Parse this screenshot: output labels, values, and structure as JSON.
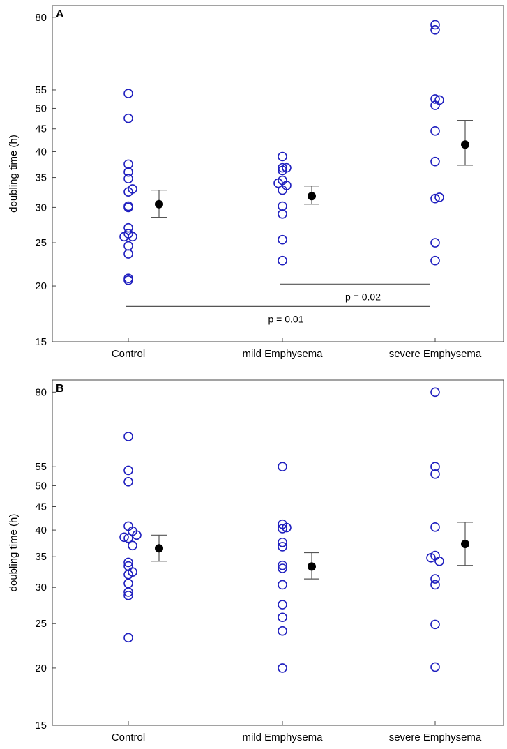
{
  "chart_data": [
    {
      "type": "scatter",
      "panel_label": "A",
      "ylabel": "doubling time (h)",
      "yscale": "log",
      "ylim": [
        15,
        85
      ],
      "yticks": [
        15,
        20,
        25,
        30,
        35,
        40,
        45,
        50,
        55,
        80
      ],
      "categories": [
        "Control",
        "mild Emphysema",
        "severe Emphysema"
      ],
      "grid": false,
      "colors": {
        "points": "#1f1fbf",
        "mean": "#000000",
        "errorbar": "#555555",
        "bracket": "#555555"
      },
      "series": [
        {
          "category": "Control",
          "points": [
            {
              "offset": 0,
              "value": 54
            },
            {
              "offset": 0,
              "value": 47.5
            },
            {
              "offset": 0,
              "value": 37.5
            },
            {
              "offset": 0,
              "value": 36
            },
            {
              "offset": 0,
              "value": 34.8
            },
            {
              "offset": 1,
              "value": 33
            },
            {
              "offset": 0,
              "value": 32.5
            },
            {
              "offset": 0,
              "value": 30.2
            },
            {
              "offset": 0,
              "value": 30
            },
            {
              "offset": 0,
              "value": 27
            },
            {
              "offset": 0,
              "value": 26.2
            },
            {
              "offset": 1,
              "value": 25.8
            },
            {
              "offset": -1,
              "value": 25.8
            },
            {
              "offset": 0,
              "value": 24.6
            },
            {
              "offset": 0,
              "value": 23.6
            },
            {
              "offset": 0,
              "value": 20.8
            },
            {
              "offset": 0,
              "value": 20.6
            }
          ],
          "mean": 30.5,
          "err_low": 28.5,
          "err_high": 32.8
        },
        {
          "category": "mild Emphysema",
          "points": [
            {
              "offset": 0,
              "value": 39
            },
            {
              "offset": 0,
              "value": 36.8
            },
            {
              "offset": 1,
              "value": 36.8
            },
            {
              "offset": 0,
              "value": 36.3
            },
            {
              "offset": 0,
              "value": 34.5
            },
            {
              "offset": -1,
              "value": 34
            },
            {
              "offset": 1,
              "value": 33.6
            },
            {
              "offset": 0,
              "value": 32.8
            },
            {
              "offset": 0,
              "value": 30.2
            },
            {
              "offset": 0,
              "value": 29
            },
            {
              "offset": 0,
              "value": 25.4
            },
            {
              "offset": 0,
              "value": 22.8
            }
          ],
          "mean": 31.8,
          "err_low": 30.5,
          "err_high": 33.5
        },
        {
          "category": "severe Emphysema",
          "points": [
            {
              "offset": 0,
              "value": 77
            },
            {
              "offset": 0,
              "value": 75
            },
            {
              "offset": 0,
              "value": 52.5
            },
            {
              "offset": 1,
              "value": 52.2
            },
            {
              "offset": 0,
              "value": 50.8
            },
            {
              "offset": 0,
              "value": 44.5
            },
            {
              "offset": 0,
              "value": 38
            },
            {
              "offset": 1,
              "value": 31.6
            },
            {
              "offset": 0,
              "value": 31.4
            },
            {
              "offset": 0,
              "value": 25
            },
            {
              "offset": 0,
              "value": 22.8
            }
          ],
          "mean": 41.5,
          "err_low": 37.3,
          "err_high": 47
        }
      ],
      "annotations": [
        {
          "text": "p = 0.02",
          "from": "mild Emphysema",
          "to": "severe Emphysema",
          "value": 20.2
        },
        {
          "text": "p = 0.01",
          "from": "Control",
          "to": "severe Emphysema",
          "value": 18
        }
      ]
    },
    {
      "type": "scatter",
      "panel_label": "B",
      "ylabel": "doubling time (h)",
      "yscale": "log",
      "ylim": [
        15,
        85
      ],
      "yticks": [
        15,
        20,
        25,
        30,
        35,
        40,
        45,
        50,
        55,
        80
      ],
      "categories": [
        "Control",
        "mild Emphysema",
        "severe Emphysema"
      ],
      "grid": false,
      "colors": {
        "points": "#1f1fbf",
        "mean": "#000000",
        "errorbar": "#555555"
      },
      "series": [
        {
          "category": "Control",
          "points": [
            {
              "offset": 0,
              "value": 64
            },
            {
              "offset": 0,
              "value": 54
            },
            {
              "offset": 0,
              "value": 51
            },
            {
              "offset": 0,
              "value": 40.8
            },
            {
              "offset": 1,
              "value": 39.8
            },
            {
              "offset": 2,
              "value": 39
            },
            {
              "offset": -1,
              "value": 38.6
            },
            {
              "offset": 0,
              "value": 38.4
            },
            {
              "offset": 1,
              "value": 37
            },
            {
              "offset": 0,
              "value": 34
            },
            {
              "offset": 0,
              "value": 33.4
            },
            {
              "offset": 1,
              "value": 32.4
            },
            {
              "offset": 0,
              "value": 32
            },
            {
              "offset": 0,
              "value": 30.6
            },
            {
              "offset": 0,
              "value": 29.3
            },
            {
              "offset": 0,
              "value": 28.8
            },
            {
              "offset": 0,
              "value": 23.3
            }
          ],
          "mean": 36.5,
          "err_low": 34.2,
          "err_high": 39
        },
        {
          "category": "mild Emphysema",
          "points": [
            {
              "offset": 0,
              "value": 55
            },
            {
              "offset": 0,
              "value": 41.2
            },
            {
              "offset": 0,
              "value": 40.3
            },
            {
              "offset": 1,
              "value": 40.5
            },
            {
              "offset": 0,
              "value": 37.6
            },
            {
              "offset": 0,
              "value": 36.8
            },
            {
              "offset": 0,
              "value": 33.5
            },
            {
              "offset": 0,
              "value": 33
            },
            {
              "offset": 0,
              "value": 30.4
            },
            {
              "offset": 0,
              "value": 27.5
            },
            {
              "offset": 0,
              "value": 25.8
            },
            {
              "offset": 0,
              "value": 24.1
            },
            {
              "offset": 0,
              "value": 20
            }
          ],
          "mean": 33.3,
          "err_low": 31.3,
          "err_high": 35.7
        },
        {
          "category": "severe Emphysema",
          "points": [
            {
              "offset": 0,
              "value": 80
            },
            {
              "offset": 0,
              "value": 55
            },
            {
              "offset": 0,
              "value": 53
            },
            {
              "offset": 0,
              "value": 40.6
            },
            {
              "offset": 0,
              "value": 35.2
            },
            {
              "offset": -1,
              "value": 34.8
            },
            {
              "offset": 1,
              "value": 34.2
            },
            {
              "offset": 0,
              "value": 31.3
            },
            {
              "offset": 0,
              "value": 30.4
            },
            {
              "offset": 0,
              "value": 24.9
            },
            {
              "offset": 0,
              "value": 20.1
            }
          ],
          "mean": 37.3,
          "err_low": 33.5,
          "err_high": 41.6
        }
      ],
      "annotations": []
    }
  ]
}
